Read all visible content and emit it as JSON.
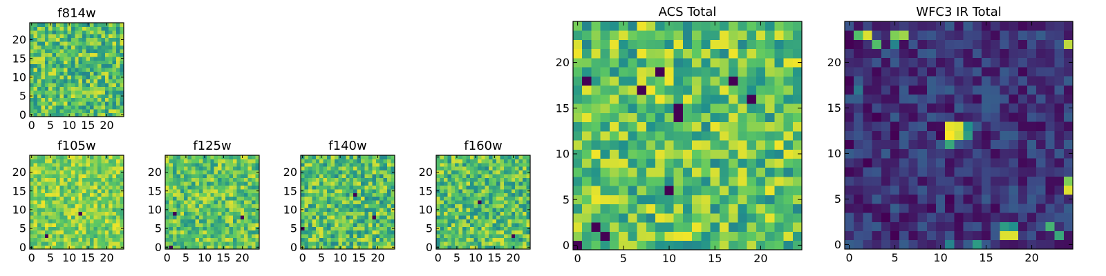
{
  "figure": {
    "background": "#ffffff"
  },
  "colormap": {
    "name": "viridis",
    "stops": [
      "#440154",
      "#3b528b",
      "#21918c",
      "#5ec962",
      "#fde725"
    ]
  },
  "chart_data": [
    {
      "type": "heatmap",
      "id": "f814w",
      "title": "f814w",
      "xlim": [
        0,
        24
      ],
      "ylim": [
        0,
        24
      ],
      "xticks": [
        0,
        5,
        10,
        15,
        20
      ],
      "yticks": [
        0,
        5,
        10,
        15,
        20
      ],
      "grid": false,
      "note": "Pixel values are noise-like; colors span the lower-mid to upper range of the colormap (mostly green-yellow, a few dark pixels).",
      "value_range": [
        0.0,
        1.0
      ],
      "typical_range": [
        0.45,
        0.95
      ]
    },
    {
      "type": "heatmap",
      "id": "f105w",
      "title": "f105w",
      "xlim": [
        0,
        24
      ],
      "ylim": [
        0,
        24
      ],
      "xticks": [
        0,
        5,
        10,
        15,
        20
      ],
      "yticks": [
        0,
        5,
        10,
        15,
        20
      ],
      "grid": false,
      "value_range": [
        0.0,
        1.0
      ],
      "typical_range": [
        0.6,
        0.98
      ],
      "dark_pixels": [
        [
          4,
          3
        ],
        [
          13,
          9
        ]
      ]
    },
    {
      "type": "heatmap",
      "id": "f125w",
      "title": "f125w",
      "xlim": [
        0,
        24
      ],
      "ylim": [
        0,
        24
      ],
      "xticks": [
        0,
        5,
        10,
        15,
        20
      ],
      "yticks": [
        0,
        5,
        10,
        15,
        20
      ],
      "grid": false,
      "value_range": [
        0.0,
        1.0
      ],
      "typical_range": [
        0.5,
        0.95
      ],
      "dark_pixels": [
        [
          2,
          9
        ],
        [
          20,
          8
        ],
        [
          1,
          0
        ]
      ]
    },
    {
      "type": "heatmap",
      "id": "f140w",
      "title": "f140w",
      "xlim": [
        0,
        24
      ],
      "ylim": [
        0,
        24
      ],
      "xticks": [
        0,
        5,
        10,
        15,
        20
      ],
      "yticks": [
        0,
        5,
        10,
        15,
        20
      ],
      "grid": false,
      "value_range": [
        0.0,
        1.0
      ],
      "typical_range": [
        0.45,
        0.95
      ],
      "dark_pixels": [
        [
          14,
          14
        ],
        [
          0,
          5
        ],
        [
          19,
          8
        ]
      ]
    },
    {
      "type": "heatmap",
      "id": "f160w",
      "title": "f160w",
      "xlim": [
        0,
        24
      ],
      "ylim": [
        0,
        24
      ],
      "xticks": [
        0,
        5,
        10,
        15,
        20
      ],
      "yticks": [
        0,
        5,
        10,
        15,
        20
      ],
      "grid": false,
      "value_range": [
        0.0,
        1.0
      ],
      "typical_range": [
        0.45,
        0.95
      ],
      "dark_pixels": [
        [
          20,
          3
        ],
        [
          11,
          12
        ]
      ]
    },
    {
      "type": "heatmap",
      "id": "acs_total",
      "title": "ACS Total",
      "xlim": [
        0,
        24
      ],
      "ylim": [
        0,
        24
      ],
      "xticks": [
        0,
        5,
        10,
        15,
        20
      ],
      "yticks": [
        0,
        5,
        10,
        15,
        20
      ],
      "grid": false,
      "value_range": [
        0.0,
        1.0
      ],
      "typical_range": [
        0.45,
        0.98
      ],
      "dark_pixels": [
        [
          1,
          18
        ],
        [
          7,
          17
        ],
        [
          9,
          19
        ],
        [
          11,
          15
        ],
        [
          11,
          14
        ],
        [
          19,
          16
        ],
        [
          17,
          18
        ],
        [
          2,
          2
        ],
        [
          3,
          1
        ],
        [
          10,
          6
        ],
        [
          0,
          0
        ]
      ]
    },
    {
      "type": "heatmap",
      "id": "wfc3_ir_total",
      "title": "WFC3 IR Total",
      "xlim": [
        0,
        24
      ],
      "ylim": [
        0,
        24
      ],
      "xticks": [
        0,
        5,
        10,
        15,
        20
      ],
      "yticks": [
        0,
        5,
        10,
        15,
        20
      ],
      "grid": false,
      "value_range": [
        0.0,
        1.0
      ],
      "typical_range": [
        0.02,
        0.3
      ],
      "bright_pixels": [
        {
          "x": 11,
          "y": 12,
          "v": 1.0
        },
        {
          "x": 12,
          "y": 12,
          "v": 0.92
        },
        {
          "x": 11,
          "y": 13,
          "v": 0.97
        },
        {
          "x": 12,
          "y": 13,
          "v": 0.95
        },
        {
          "x": 13,
          "y": 12,
          "v": 0.55
        },
        {
          "x": 13,
          "y": 13,
          "v": 0.5
        },
        {
          "x": 11,
          "y": 11,
          "v": 0.6
        },
        {
          "x": 2,
          "y": 23,
          "v": 0.95
        },
        {
          "x": 1,
          "y": 23,
          "v": 0.7
        },
        {
          "x": 5,
          "y": 23,
          "v": 0.8
        },
        {
          "x": 6,
          "y": 23,
          "v": 0.85
        },
        {
          "x": 3,
          "y": 22,
          "v": 0.7
        },
        {
          "x": 5,
          "y": 22,
          "v": 0.45
        },
        {
          "x": 24,
          "y": 22,
          "v": 0.9
        },
        {
          "x": 24,
          "y": 6,
          "v": 0.95
        },
        {
          "x": 24,
          "y": 7,
          "v": 0.8
        },
        {
          "x": 17,
          "y": 1,
          "v": 0.95
        },
        {
          "x": 18,
          "y": 1,
          "v": 0.95
        },
        {
          "x": 17,
          "y": 2,
          "v": 0.55
        },
        {
          "x": 18,
          "y": 2,
          "v": 0.5
        },
        {
          "x": 22,
          "y": 2,
          "v": 0.65
        },
        {
          "x": 23,
          "y": 1,
          "v": 0.6
        },
        {
          "x": 14,
          "y": 0,
          "v": 0.55
        },
        {
          "x": 11,
          "y": 0,
          "v": 0.45
        },
        {
          "x": 1,
          "y": 17,
          "v": 0.4
        }
      ],
      "dark_pixels": [
        [
          0,
          22
        ],
        [
          0,
          18
        ],
        [
          3,
          14
        ],
        [
          0,
          11
        ],
        [
          5,
          12
        ],
        [
          10,
          12
        ],
        [
          2,
          9
        ],
        [
          4,
          3
        ],
        [
          5,
          1
        ],
        [
          11,
          5
        ]
      ]
    }
  ]
}
